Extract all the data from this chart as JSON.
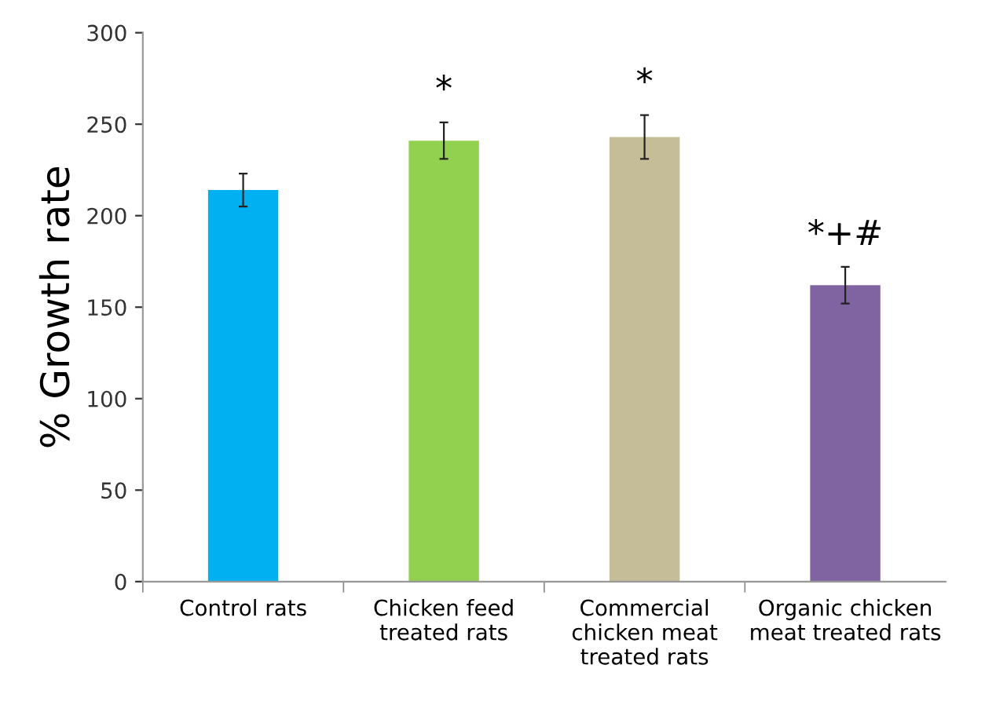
{
  "chart_data": {
    "type": "bar",
    "ylabel": "% Growth rate",
    "categories": [
      "Control rats",
      "Chicken feed\ntreated rats",
      "Commercial\nchicken meat\ntreated rats",
      "Organic chicken\nmeat treated rats"
    ],
    "values": [
      214,
      241,
      243,
      162
    ],
    "errors": [
      9,
      10,
      12,
      10
    ],
    "colors": [
      "#00b0f0",
      "#92d050",
      "#c4bd97",
      "#8064a2"
    ],
    "ylim": [
      0,
      300
    ],
    "yticks": [
      0,
      50,
      100,
      150,
      200,
      250,
      300
    ],
    "grid": false,
    "legend": false,
    "annotations": [
      "*",
      "*",
      "*+#"
    ]
  }
}
